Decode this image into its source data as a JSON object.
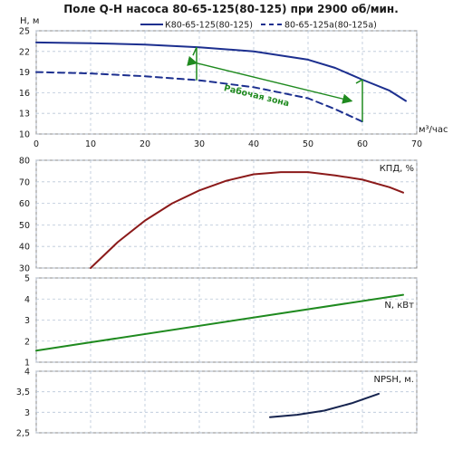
{
  "title": "Поле Q-H насоса 80-65-125(80-125) при 2900 об/мин.",
  "chart_data": [
    {
      "type": "line",
      "panel": "head",
      "ylabel": "H, м",
      "xlabel": "м³/час",
      "xlim": [
        0,
        70
      ],
      "ylim": [
        10,
        25
      ],
      "yticks": [
        10,
        13,
        16,
        19,
        22,
        25
      ],
      "xticks": [
        0,
        10,
        20,
        30,
        40,
        50,
        60,
        70
      ],
      "grid": true,
      "legend_position": "top",
      "series": [
        {
          "name": "К80-65-125(80-125)",
          "style": "solid",
          "color": "#1c2f8f",
          "x": [
            0,
            10,
            20,
            30,
            40,
            50,
            55,
            60,
            65,
            68
          ],
          "y": [
            23.3,
            23.2,
            23.0,
            22.6,
            22.0,
            20.8,
            19.6,
            17.9,
            16.3,
            14.8
          ]
        },
        {
          "name": "80-65-125а(80-125а)",
          "style": "dashed",
          "color": "#1c2f8f",
          "x": [
            0,
            10,
            20,
            30,
            40,
            50,
            55,
            60
          ],
          "y": [
            19.0,
            18.8,
            18.4,
            17.8,
            16.8,
            15.2,
            13.6,
            11.8
          ]
        }
      ],
      "annotation": {
        "text": "Рабочая зона",
        "color": "#1f8a1f",
        "left": {
          "x": 29.5,
          "y_top": 22.6,
          "y_bottom": 17.8
        },
        "right": {
          "x": 60,
          "y_top": 17.9,
          "y_bottom": 11.8
        },
        "arrow": {
          "from": [
            29.5,
            20.3
          ],
          "to": [
            58,
            14.8
          ]
        }
      }
    },
    {
      "type": "line",
      "panel": "efficiency",
      "ylabel": "КПД, %",
      "xlim": [
        0,
        70
      ],
      "ylim": [
        30,
        80
      ],
      "yticks": [
        30,
        40,
        50,
        60,
        70,
        80
      ],
      "grid": true,
      "series": [
        {
          "name": "КПД, %",
          "color": "#8b1a1a",
          "x": [
            10,
            15,
            20,
            25,
            30,
            35,
            40,
            45,
            50,
            55,
            60,
            65,
            67.5
          ],
          "y": [
            30,
            42,
            52,
            60,
            66,
            70.5,
            73.5,
            74.5,
            74.5,
            73,
            71,
            67.5,
            65
          ]
        }
      ]
    },
    {
      "type": "line",
      "panel": "power",
      "ylabel": "N, кВт",
      "xlim": [
        0,
        70
      ],
      "ylim": [
        1,
        5
      ],
      "yticks": [
        1,
        2,
        3,
        4,
        5
      ],
      "grid": true,
      "series": [
        {
          "name": "N, кВт",
          "color": "#1f8a1f",
          "x": [
            0,
            67.5
          ],
          "y": [
            1.55,
            4.2
          ]
        }
      ]
    },
    {
      "type": "line",
      "panel": "npsh",
      "ylabel": "NPSH, м.",
      "xlim": [
        0,
        70
      ],
      "ylim": [
        2.5,
        4
      ],
      "yticks": [
        2.5,
        3,
        3.5,
        4
      ],
      "ytick_labels": [
        "2,5",
        "3",
        "3,5",
        "4"
      ],
      "grid": true,
      "series": [
        {
          "name": "NPSH, м.",
          "color": "#16244f",
          "x": [
            43,
            48,
            53,
            58,
            63
          ],
          "y": [
            2.88,
            2.94,
            3.04,
            3.22,
            3.45
          ]
        }
      ]
    }
  ]
}
